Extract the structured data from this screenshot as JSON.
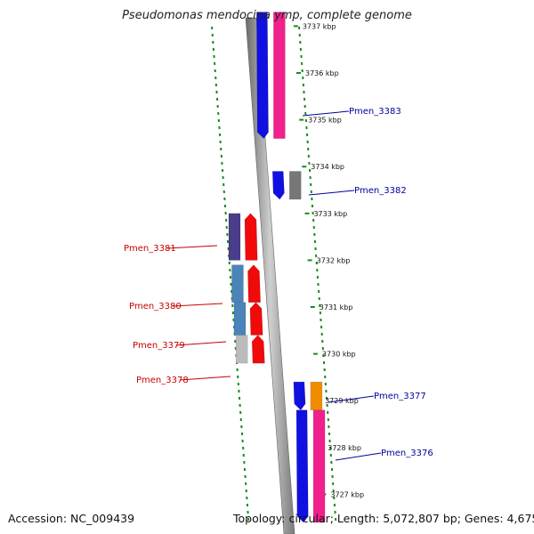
{
  "title": "Pseudomonas mendocina ymp, complete genome",
  "footer": {
    "accession": "Accession: NC_009439",
    "summary": "Topology: circular; Length: 5,072,807 bp; Genes: 4,675"
  },
  "colors": {
    "forward_label": "#00009b",
    "reverse_label": "#c80000",
    "backbone": "#9a9a9a",
    "tick": "#1a8a1a"
  },
  "ticks": [
    "3737 kbp",
    "3736 kbp",
    "3735 kbp",
    "3734 kbp",
    "3733 kbp",
    "3732 kbp",
    "3731 kbp",
    "3730 kbp",
    "3729 kbp",
    "3728 kbp",
    "3727 kbp"
  ],
  "genes": [
    {
      "name": "Pmen_3383",
      "strand": "forward",
      "start_kbp": 3734.6,
      "end_kbp": 3737.3,
      "colors": [
        "#1010e0",
        "#f0208c"
      ]
    },
    {
      "name": "Pmen_3382",
      "strand": "forward",
      "start_kbp": 3733.3,
      "end_kbp": 3733.9,
      "colors": [
        "#1010e0",
        "#777777"
      ]
    },
    {
      "name": "Pmen_3381",
      "strand": "reverse",
      "start_kbp": 3732.0,
      "end_kbp": 3733.0,
      "colors": [
        "#4a3d8a",
        "#f00a0a"
      ]
    },
    {
      "name": "Pmen_3380",
      "strand": "reverse",
      "start_kbp": 3731.1,
      "end_kbp": 3731.9,
      "colors": [
        "#4a84b8",
        "#f00a0a"
      ]
    },
    {
      "name": "Pmen_3379",
      "strand": "reverse",
      "start_kbp": 3730.4,
      "end_kbp": 3731.1,
      "colors": [
        "#4a84b8",
        "#f00a0a"
      ]
    },
    {
      "name": "Pmen_3378",
      "strand": "reverse",
      "start_kbp": 3729.8,
      "end_kbp": 3730.4,
      "colors": [
        "#bbbbbb",
        "#f00a0a"
      ]
    },
    {
      "name": "Pmen_3377",
      "strand": "forward",
      "start_kbp": 3728.8,
      "end_kbp": 3729.4,
      "colors": [
        "#1010e0",
        "#f08c00"
      ]
    },
    {
      "name": "Pmen_3376",
      "strand": "forward",
      "start_kbp": 3726.4,
      "end_kbp": 3728.8,
      "colors": [
        "#1010e0",
        "#f0208c"
      ]
    }
  ]
}
